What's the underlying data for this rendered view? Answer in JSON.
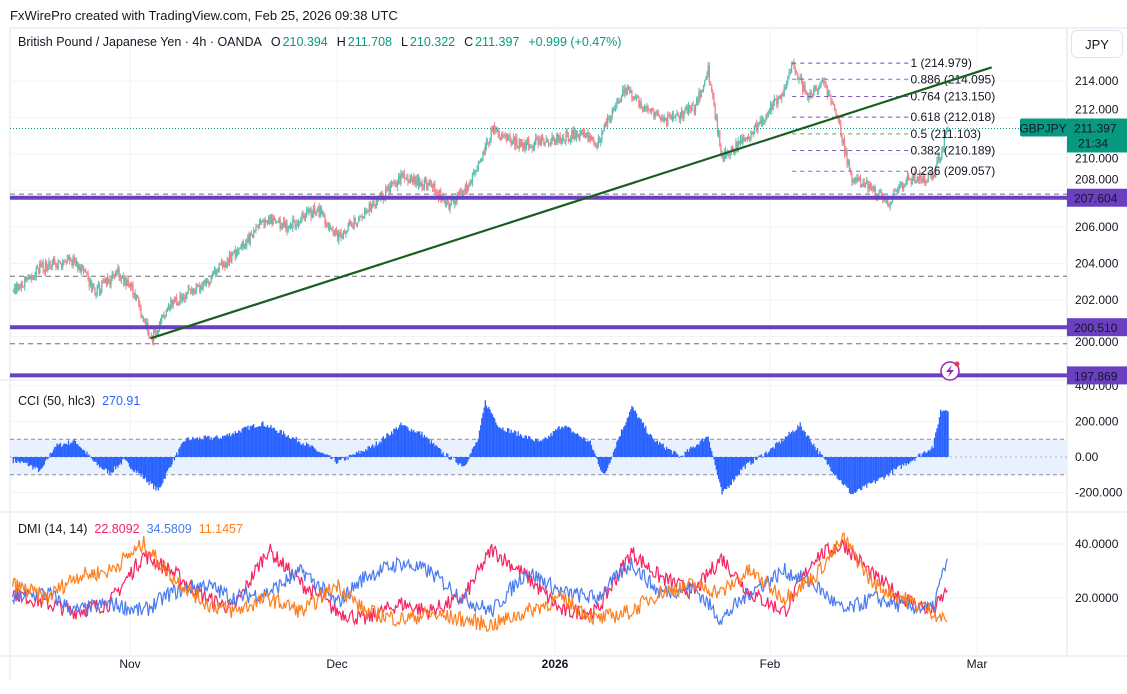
{
  "header": {
    "credit": "FxWirePro created with TradingView.com, Feb 25, 2026 09:38 UTC"
  },
  "legend": {
    "symbol": "British Pound / Japanese Yen · 4h · OANDA",
    "o_label": "O",
    "o": "210.394",
    "h_label": "H",
    "h": "211.708",
    "l_label": "L",
    "l": "210.322",
    "c_label": "C",
    "c": "211.397",
    "change": "+0.999 (+0.47%)"
  },
  "currency_button": "JPY",
  "colors": {
    "up": "#5cbfae",
    "down": "#f6838b",
    "accent": "#089981",
    "support": "#6a3fc0",
    "trendline": "#1b5e20",
    "cci": "#2962ff",
    "adx": "#f7245f",
    "plus_di": "#4a7bf0",
    "minus_di": "#ff7f1e"
  },
  "price_badge": {
    "symbol": "GBPJPY",
    "price": "211.397",
    "countdown": "21:34"
  },
  "support_levels": [
    {
      "label": "207.604",
      "price": 207.604
    },
    {
      "label": "200.510",
      "price": 200.51
    },
    {
      "label": "197.869",
      "price": 197.869
    }
  ],
  "dashed_levels": [
    207.8,
    203.3,
    199.6
  ],
  "price_axis": [
    "214.000",
    "212.000",
    "210.000",
    "208.000",
    "206.000",
    "204.000",
    "202.000",
    "200.000"
  ],
  "fibonacci": {
    "start": "2026-02-04",
    "end": "2026-02-20",
    "levels": [
      {
        "label": "1 (214.979)",
        "price": 214.979,
        "color": "#3f5fbf"
      },
      {
        "label": "0.886 (214.095)",
        "price": 214.095,
        "color": "#4d7cf0"
      },
      {
        "label": "0.764 (213.150)",
        "price": 213.15,
        "color": "#7e57c2"
      },
      {
        "label": "0.618 (212.018)",
        "price": 212.018,
        "color": "#7e57c2"
      },
      {
        "label": "0.5 (211.103)",
        "price": 211.103,
        "color": "#4caf50"
      },
      {
        "label": "0.382 (210.189)",
        "price": 210.189,
        "color": "#7e57c2"
      },
      {
        "label": "0.236 (209.057)",
        "price": 209.057,
        "color": "#4d7cf0"
      }
    ]
  },
  "trendline": [
    [
      "2025-11-04",
      199.9
    ],
    [
      "2026-03-03",
      214.75
    ]
  ],
  "x_axis": [
    {
      "label": "Nov",
      "date": "2025-11-01"
    },
    {
      "label": "Dec",
      "date": "2025-12-01"
    },
    {
      "label": "2026",
      "date": "2026-01-01"
    },
    {
      "label": "Feb",
      "date": "2026-02-01"
    },
    {
      "label": "Mar",
      "date": "2026-03-01"
    }
  ],
  "cci": {
    "title": "CCI (50, hlc3)",
    "value": "270.91",
    "axis": [
      "400.000",
      "200.000",
      "0.00",
      "-200.000"
    ]
  },
  "dmi": {
    "title": "DMI (14, 14)",
    "adx": "22.8092",
    "plus_di": "34.5809",
    "minus_di": "11.1457",
    "axis": [
      "40.0000",
      "20.0000"
    ]
  },
  "chart_data": [
    {
      "type": "candlestick",
      "title": "British Pound / Japanese Yen · 4h · OANDA",
      "close_path": [
        [
          "2025-10-15",
          202.5
        ],
        [
          "2025-10-19",
          203.8
        ],
        [
          "2025-10-24",
          204.2
        ],
        [
          "2025-10-27",
          202.4
        ],
        [
          "2025-10-30",
          203.5
        ],
        [
          "2025-11-01",
          202.8
        ],
        [
          "2025-11-04",
          199.9
        ],
        [
          "2025-11-07",
          201.8
        ],
        [
          "2025-11-12",
          203.0
        ],
        [
          "2025-11-16",
          204.5
        ],
        [
          "2025-11-21",
          206.5
        ],
        [
          "2025-11-24",
          206.0
        ],
        [
          "2025-11-28",
          207.0
        ],
        [
          "2025-12-01",
          205.5
        ],
        [
          "2025-12-05",
          206.8
        ],
        [
          "2025-12-10",
          208.7
        ],
        [
          "2025-12-14",
          208.3
        ],
        [
          "2025-12-17",
          207.2
        ],
        [
          "2025-12-20",
          208.5
        ],
        [
          "2025-12-23",
          211.3
        ],
        [
          "2025-12-27",
          210.5
        ],
        [
          "2026-01-01",
          210.8
        ],
        [
          "2026-01-05",
          211.2
        ],
        [
          "2026-01-07",
          210.6
        ],
        [
          "2026-01-11",
          213.6
        ],
        [
          "2026-01-14",
          212.5
        ],
        [
          "2026-01-17",
          211.8
        ],
        [
          "2026-01-21",
          212.5
        ],
        [
          "2026-01-23",
          214.6
        ],
        [
          "2026-01-25",
          209.8
        ],
        [
          "2026-01-29",
          211.0
        ],
        [
          "2026-02-03",
          213.5
        ],
        [
          "2026-02-04",
          214.9
        ],
        [
          "2026-02-06",
          213.0
        ],
        [
          "2026-02-08",
          214.0
        ],
        [
          "2026-02-10",
          212.0
        ],
        [
          "2026-02-12",
          208.5
        ],
        [
          "2026-02-14",
          208.3
        ],
        [
          "2026-02-17",
          207.4
        ],
        [
          "2026-02-19",
          208.5
        ],
        [
          "2026-02-23",
          208.8
        ],
        [
          "2026-02-25",
          211.4
        ]
      ],
      "ylim": [
        197,
        216
      ]
    },
    {
      "type": "area",
      "title": "CCI (50, hlc3)",
      "points": [
        [
          "2025-10-15",
          -20
        ],
        [
          "2025-10-17",
          -40
        ],
        [
          "2025-10-19",
          -80
        ],
        [
          "2025-10-21",
          60
        ],
        [
          "2025-10-24",
          90
        ],
        [
          "2025-10-27",
          -40
        ],
        [
          "2025-10-29",
          -90
        ],
        [
          "2025-10-31",
          -20
        ],
        [
          "2025-11-03",
          -120
        ],
        [
          "2025-11-05",
          -190
        ],
        [
          "2025-11-07",
          -30
        ],
        [
          "2025-11-09",
          100
        ],
        [
          "2025-11-14",
          110
        ],
        [
          "2025-11-20",
          190
        ],
        [
          "2025-11-26",
          80
        ],
        [
          "2025-12-01",
          -30
        ],
        [
          "2025-12-06",
          60
        ],
        [
          "2025-12-10",
          180
        ],
        [
          "2025-12-13",
          130
        ],
        [
          "2025-12-16",
          20
        ],
        [
          "2025-12-19",
          -50
        ],
        [
          "2025-12-21",
          100
        ],
        [
          "2025-12-22",
          310
        ],
        [
          "2025-12-24",
          170
        ],
        [
          "2025-12-30",
          80
        ],
        [
          "2026-01-02",
          180
        ],
        [
          "2026-01-06",
          80
        ],
        [
          "2026-01-08",
          -110
        ],
        [
          "2026-01-10",
          100
        ],
        [
          "2026-01-12",
          280
        ],
        [
          "2026-01-15",
          100
        ],
        [
          "2026-01-19",
          0
        ],
        [
          "2026-01-23",
          120
        ],
        [
          "2026-01-25",
          -210
        ],
        [
          "2026-01-28",
          -60
        ],
        [
          "2026-02-01",
          40
        ],
        [
          "2026-02-05",
          180
        ],
        [
          "2026-02-08",
          0
        ],
        [
          "2026-02-10",
          -110
        ],
        [
          "2026-02-12",
          -210
        ],
        [
          "2026-02-16",
          -120
        ],
        [
          "2026-02-20",
          -20
        ],
        [
          "2026-02-23",
          60
        ],
        [
          "2026-02-24",
          260
        ],
        [
          "2026-02-25",
          270.91
        ]
      ],
      "ylim": [
        -260,
        420
      ],
      "bands": [
        -100,
        100
      ]
    },
    {
      "type": "line",
      "title": "DMI (14, 14)",
      "dates": [
        "2025-10-15",
        "2025-10-20",
        "2025-10-24",
        "2025-10-29",
        "2025-11-03",
        "2025-11-07",
        "2025-11-12",
        "2025-11-16",
        "2025-11-21",
        "2025-11-26",
        "2025-12-01",
        "2025-12-05",
        "2025-12-10",
        "2025-12-14",
        "2025-12-19",
        "2025-12-23",
        "2025-12-28",
        "2026-01-02",
        "2026-01-07",
        "2026-01-12",
        "2026-01-16",
        "2026-01-21",
        "2026-01-25",
        "2026-01-29",
        "2026-02-03",
        "2026-02-07",
        "2026-02-11",
        "2026-02-15",
        "2026-02-19",
        "2026-02-23",
        "2026-02-25"
      ],
      "series": [
        {
          "key": "adx",
          "values": [
            22,
            18,
            15,
            18,
            36,
            30,
            20,
            16,
            38,
            25,
            15,
            12,
            18,
            15,
            20,
            38,
            28,
            15,
            15,
            37,
            28,
            22,
            35,
            22,
            15,
            35,
            40,
            28,
            20,
            15,
            22.8092
          ]
        },
        {
          "key": "plus_di",
          "values": [
            20,
            22,
            15,
            18,
            15,
            22,
            25,
            20,
            22,
            30,
            18,
            28,
            33,
            30,
            20,
            15,
            30,
            22,
            20,
            33,
            22,
            24,
            12,
            22,
            30,
            25,
            15,
            20,
            17,
            16,
            34.5809
          ]
        },
        {
          "key": "minus_di",
          "values": [
            25,
            20,
            28,
            30,
            40,
            28,
            18,
            15,
            20,
            15,
            25,
            15,
            12,
            14,
            12,
            10,
            15,
            20,
            12,
            15,
            22,
            25,
            22,
            30,
            20,
            28,
            42,
            25,
            20,
            15,
            11.1457
          ]
        }
      ],
      "ylim": [
        8,
        48
      ]
    }
  ]
}
